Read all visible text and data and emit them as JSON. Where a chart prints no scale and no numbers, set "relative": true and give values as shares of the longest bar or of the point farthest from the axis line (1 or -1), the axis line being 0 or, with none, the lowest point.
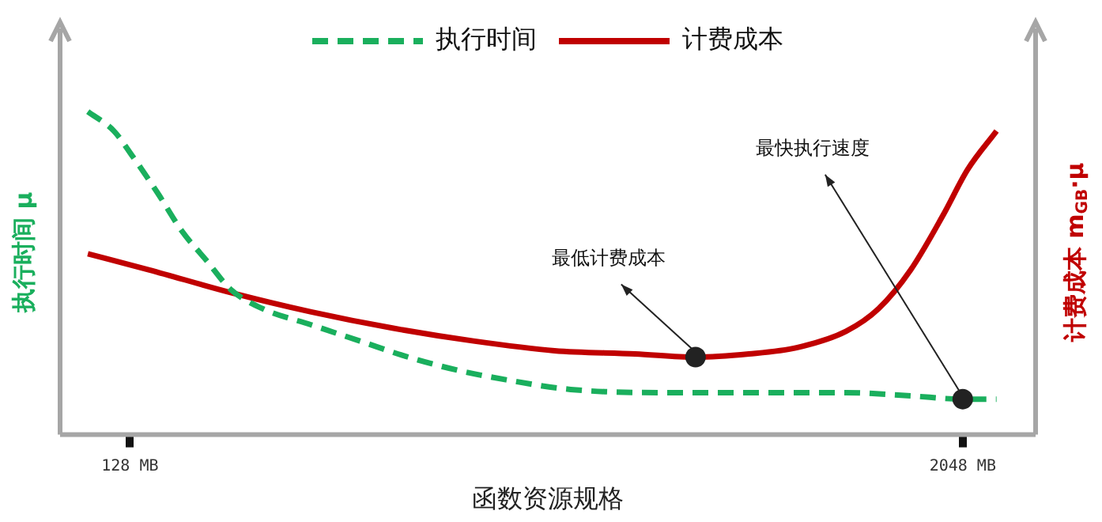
{
  "chart_data": {
    "type": "line",
    "relative": true,
    "xlabel": "函数资源规格",
    "ylabel": "执行时间 μ",
    "y2label": "计费成本 m$_{GB}$·μ",
    "xlim": [
      -33,
      2216
    ],
    "xticks": [
      {
        "value": 128,
        "label": "128 MB"
      },
      {
        "value": 2048,
        "label": "2048 MB"
      }
    ],
    "grid": false,
    "legend": "top",
    "marker": "none",
    "series": [
      {
        "name": "执行时间",
        "color": "#1aaf5d",
        "line_style": "dashed",
        "x": [
          31,
          91,
          135,
          191,
          248,
          304,
          360,
          434,
          546,
          658,
          770,
          882,
          995,
          1144,
          1368,
          1592,
          1779,
          1928,
          2048,
          2126
        ],
        "values": [
          1,
          0.94,
          0.86,
          0.75,
          0.63,
          0.54,
          0.45,
          0.39,
          0.34,
          0.29,
          0.24,
          0.2,
          0.17,
          0.14,
          0.13,
          0.13,
          0.13,
          0.12,
          0.11,
          0.11
        ]
      },
      {
        "name": "计费成本",
        "color": "#c00000",
        "line_style": "solid",
        "x": [
          31,
          173,
          360,
          546,
          733,
          920,
          1107,
          1293,
          1432,
          1555,
          1667,
          1779,
          1854,
          1928,
          2003,
          2059,
          2126
        ],
        "values": [
          0.56,
          0.51,
          0.44,
          0.38,
          0.33,
          0.29,
          0.26,
          0.25,
          0.24,
          0.25,
          0.27,
          0.32,
          0.39,
          0.51,
          0.68,
          0.82,
          0.94
        ]
      }
    ],
    "annotations": [
      {
        "text": "最低计费成本",
        "x": 1432,
        "y": 0.24
      },
      {
        "text": "最快执行速度",
        "x": 2048,
        "y": 0.11
      }
    ]
  }
}
